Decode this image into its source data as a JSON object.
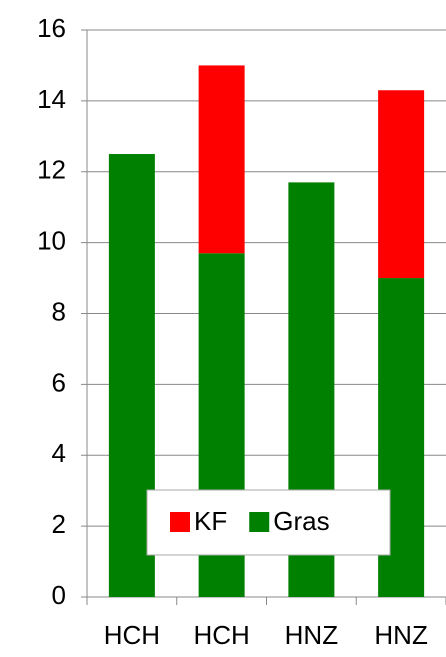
{
  "chart_data": {
    "type": "stacked_bar",
    "categories": [
      "HCH",
      "HCH",
      "HNZ",
      "HNZ"
    ],
    "series": [
      {
        "name": "Gras",
        "color": "#008000",
        "values": [
          12.5,
          9.7,
          11.7,
          9.0
        ]
      },
      {
        "name": "KF",
        "color": "#ff0000",
        "values": [
          null,
          5.3,
          null,
          5.3
        ]
      }
    ],
    "ylim": [
      0,
      16
    ],
    "yticks": [
      0,
      2,
      4,
      6,
      8,
      10,
      12,
      14,
      16
    ],
    "grid": true
  }
}
